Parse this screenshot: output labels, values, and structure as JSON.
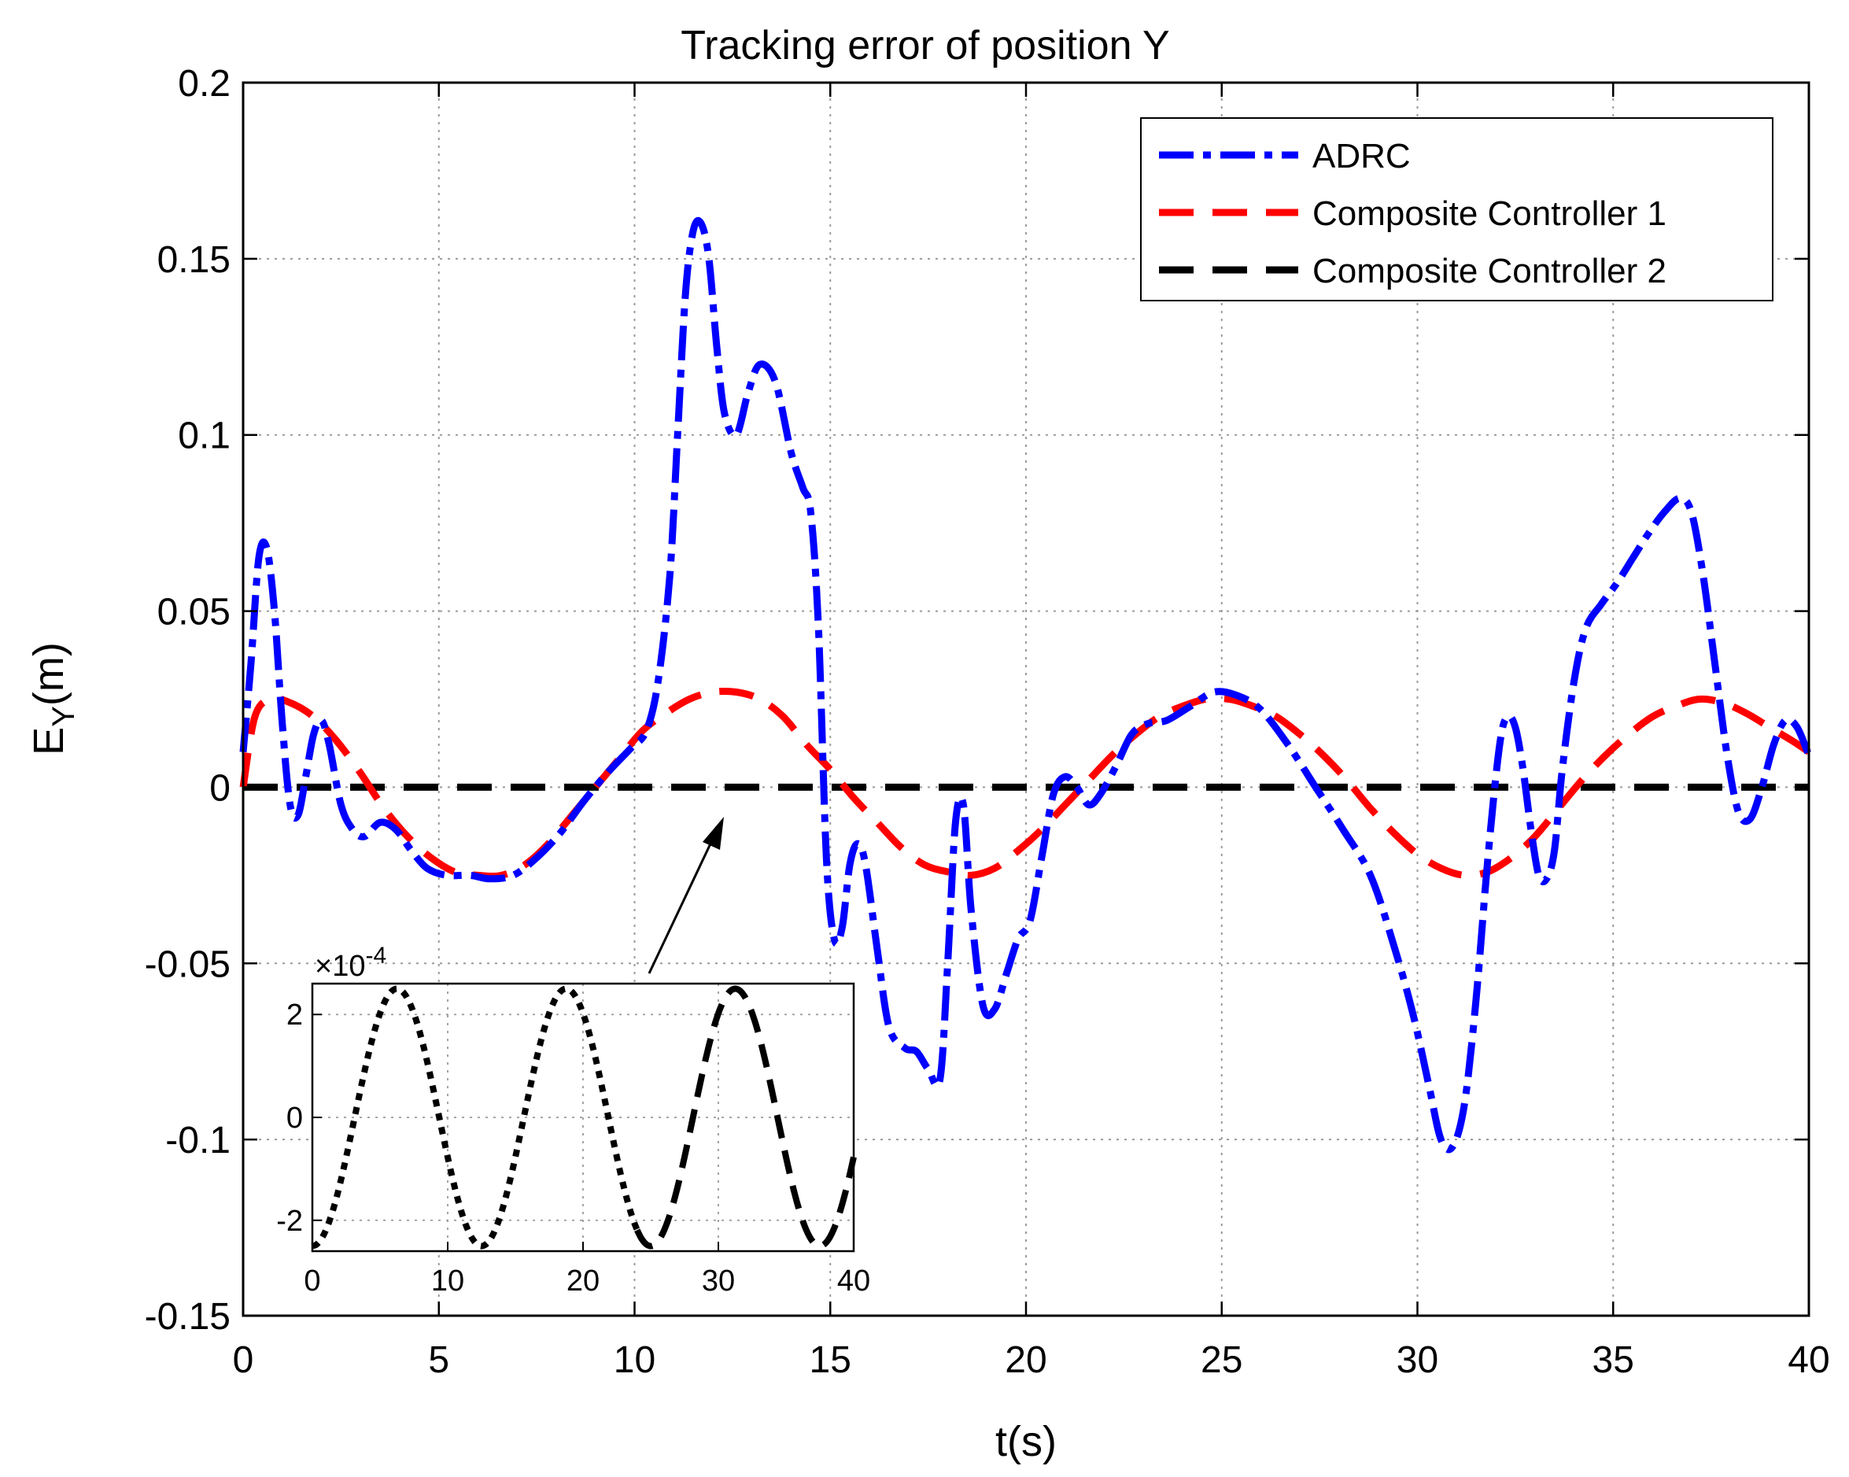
{
  "chart_data": {
    "type": "line",
    "title": "Tracking error of position Y",
    "xlabel": "t(s)",
    "ylabel_main": "E",
    "ylabel_sub": "Y",
    "ylabel_unit": "(m)",
    "xlim": [
      0,
      40
    ],
    "ylim": [
      -0.15,
      0.2
    ],
    "xticks": [
      0,
      5,
      10,
      15,
      20,
      25,
      30,
      35,
      40
    ],
    "xtick_labels": [
      "0",
      "5",
      "10",
      "15",
      "20",
      "25",
      "30",
      "35",
      "40"
    ],
    "yticks": [
      -0.15,
      -0.1,
      -0.05,
      0,
      0.05,
      0.1,
      0.15,
      0.2
    ],
    "ytick_labels": [
      "-0.15",
      "-0.1",
      "-0.05",
      "0",
      "0.05",
      "0.1",
      "0.15",
      "0.2"
    ],
    "grid": true,
    "legend_position": "top-right",
    "series": [
      {
        "name": "ADRC",
        "color": "#0000ff",
        "style": "dash-dot",
        "x": [
          0,
          0.2,
          0.4,
          0.6,
          0.8,
          1.0,
          1.2,
          1.4,
          1.6,
          1.8,
          2.0,
          2.2,
          2.5,
          2.8,
          3.1,
          3.5,
          3.9,
          4.3,
          4.7,
          5.2,
          5.8,
          6.3,
          6.9,
          7.5,
          8.1,
          8.7,
          9.3,
          9.9,
          10.3,
          10.6,
          10.9,
          11.1,
          11.3,
          11.5,
          11.7,
          11.9,
          12.1,
          12.3,
          12.6,
          12.9,
          13.2,
          13.6,
          14.0,
          14.3,
          14.5,
          14.7,
          14.9,
          15.1,
          15.3,
          15.5,
          15.7,
          15.9,
          16.2,
          16.5,
          16.9,
          17.2,
          17.5,
          17.8,
          18.0,
          18.2,
          18.4,
          18.6,
          18.9,
          19.2,
          19.5,
          19.8,
          20.1,
          20.4,
          20.7,
          21.0,
          21.3,
          21.6,
          21.9,
          22.3,
          22.7,
          23.1,
          23.6,
          24.2,
          24.8,
          25.4,
          26.0,
          26.7,
          27.4,
          28.1,
          28.8,
          29.4,
          29.9,
          30.3,
          30.6,
          30.9,
          31.2,
          31.5,
          31.8,
          32.1,
          32.3,
          32.5,
          32.7,
          32.9,
          33.1,
          33.3,
          33.5,
          33.7,
          34.0,
          34.3,
          34.7,
          35.1,
          35.5,
          35.9,
          36.3,
          36.7,
          37.0,
          37.3,
          37.6,
          37.9,
          38.2,
          38.5,
          38.8,
          39.1,
          39.4,
          39.7,
          40.0
        ],
        "values": [
          0.01,
          0.035,
          0.065,
          0.068,
          0.05,
          0.018,
          -0.005,
          -0.008,
          0.003,
          0.015,
          0.019,
          0.012,
          -0.005,
          -0.012,
          -0.014,
          -0.01,
          -0.012,
          -0.018,
          -0.023,
          -0.025,
          -0.025,
          -0.026,
          -0.025,
          -0.02,
          -0.013,
          -0.004,
          0.004,
          0.011,
          0.016,
          0.03,
          0.06,
          0.1,
          0.14,
          0.158,
          0.16,
          0.15,
          0.125,
          0.106,
          0.1,
          0.112,
          0.12,
          0.115,
          0.095,
          0.085,
          0.078,
          0.045,
          -0.02,
          -0.043,
          -0.04,
          -0.022,
          -0.016,
          -0.022,
          -0.046,
          -0.068,
          -0.074,
          -0.075,
          -0.08,
          -0.083,
          -0.05,
          -0.01,
          -0.005,
          -0.035,
          -0.062,
          -0.063,
          -0.053,
          -0.043,
          -0.038,
          -0.02,
          -0.002,
          0.003,
          0.0,
          -0.005,
          -0.002,
          0.006,
          0.015,
          0.018,
          0.019,
          0.023,
          0.027,
          0.026,
          0.022,
          0.012,
          0.0,
          -0.012,
          -0.025,
          -0.045,
          -0.065,
          -0.085,
          -0.1,
          -0.102,
          -0.09,
          -0.06,
          -0.02,
          0.012,
          0.02,
          0.017,
          0.005,
          -0.012,
          -0.025,
          -0.026,
          -0.018,
          0.005,
          0.03,
          0.045,
          0.052,
          0.058,
          0.065,
          0.072,
          0.078,
          0.082,
          0.078,
          0.06,
          0.035,
          0.01,
          -0.007,
          -0.009,
          0.0,
          0.012,
          0.019,
          0.017,
          0.009
        ]
      },
      {
        "name": "Composite Controller 1",
        "color": "#ff0000",
        "style": "dash",
        "x": [
          0,
          0.3,
          0.7,
          1.2,
          1.8,
          2.4,
          3.0,
          3.6,
          4.2,
          4.8,
          5.4,
          6.0,
          6.6,
          7.2,
          7.8,
          8.4,
          9.0,
          9.6,
          10.2,
          10.8,
          11.4,
          12.0,
          12.6,
          13.2,
          13.8,
          14.4,
          15.0,
          15.6,
          16.2,
          16.8,
          17.4,
          18.0,
          18.6,
          19.2,
          19.8,
          20.4,
          21.0,
          21.6,
          22.2,
          22.8,
          23.4,
          24.0,
          24.6,
          25.2,
          25.8,
          26.4,
          27.0,
          27.6,
          28.2,
          28.8,
          29.4,
          30.0,
          30.6,
          31.2,
          31.8,
          32.4,
          33.0,
          33.6,
          34.2,
          34.8,
          35.4,
          36.0,
          36.6,
          37.2,
          37.8,
          38.4,
          39.0,
          39.6,
          40.0
        ],
        "values": [
          0.0,
          0.02,
          0.025,
          0.024,
          0.02,
          0.013,
          0.004,
          -0.006,
          -0.014,
          -0.02,
          -0.024,
          -0.025,
          -0.025,
          -0.022,
          -0.016,
          -0.008,
          0.0,
          0.008,
          0.016,
          0.021,
          0.025,
          0.027,
          0.027,
          0.025,
          0.02,
          0.012,
          0.005,
          -0.003,
          -0.01,
          -0.017,
          -0.022,
          -0.024,
          -0.025,
          -0.023,
          -0.018,
          -0.012,
          -0.005,
          0.002,
          0.009,
          0.015,
          0.02,
          0.023,
          0.025,
          0.025,
          0.023,
          0.02,
          0.015,
          0.009,
          0.002,
          -0.006,
          -0.013,
          -0.019,
          -0.023,
          -0.025,
          -0.024,
          -0.02,
          -0.014,
          -0.006,
          0.002,
          0.009,
          0.015,
          0.02,
          0.023,
          0.025,
          0.024,
          0.021,
          0.017,
          0.013,
          0.01
        ]
      },
      {
        "name": "Composite Controller 2",
        "color": "#000000",
        "style": "dash",
        "x": [
          0,
          40
        ],
        "values": [
          0,
          0
        ]
      }
    ],
    "inset": {
      "exponent_label": "×10",
      "exponent": "-4",
      "xlim": [
        0,
        40
      ],
      "ylim": [
        -2.6,
        2.6
      ],
      "xticks": [
        0,
        10,
        20,
        30,
        40
      ],
      "xtick_labels": [
        "0",
        "10",
        "20",
        "30",
        "40"
      ],
      "yticks": [
        -2,
        0,
        2
      ],
      "ytick_labels": [
        "-2",
        "0",
        "2"
      ],
      "grid": true,
      "period": 12.5,
      "amplitude": 2.5,
      "phase_min_at": 0,
      "dotted_until": 24
    }
  }
}
